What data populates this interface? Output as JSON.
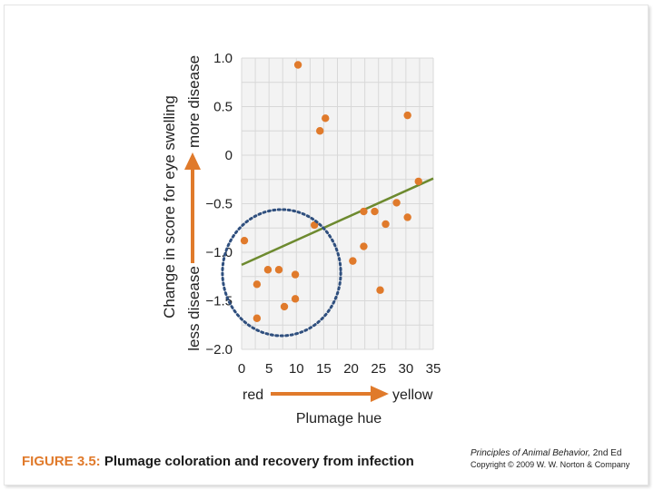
{
  "figure": {
    "label": "FIGURE 3.5:",
    "title": "Plumage coloration and recovery from infection",
    "book_title": "Principles of Animal Behavior,",
    "edition": "2nd Ed",
    "copyright": "Copyright © 2009 W. W. Norton & Company"
  },
  "chart_data": {
    "type": "scatter",
    "xlabel": "Plumage hue",
    "ylabel": "Change in score for eye swelling",
    "x_direction_labels": {
      "left": "red",
      "right": "yellow"
    },
    "y_direction_labels": {
      "bottom": "less disease",
      "top": "more disease"
    },
    "xlim": [
      0,
      35
    ],
    "ylim": [
      -2.0,
      1.0
    ],
    "x_ticks": [
      0,
      5,
      10,
      15,
      20,
      25,
      30,
      35
    ],
    "y_ticks": [
      -2.0,
      -1.5,
      -1.0,
      -0.5,
      0,
      0.5,
      1.0
    ],
    "y_tick_labels": [
      "−2.0",
      "−1.5",
      "−1.0",
      "−0.5",
      "0",
      "0.5",
      "1.0"
    ],
    "grid": true,
    "points": [
      {
        "x": 0.5,
        "y": -0.88
      },
      {
        "x": 2.8,
        "y": -1.33
      },
      {
        "x": 2.8,
        "y": -1.68
      },
      {
        "x": 4.8,
        "y": -1.18
      },
      {
        "x": 6.8,
        "y": -1.18
      },
      {
        "x": 7.8,
        "y": -1.56
      },
      {
        "x": 9.8,
        "y": -1.23
      },
      {
        "x": 9.8,
        "y": -1.48
      },
      {
        "x": 10.3,
        "y": 0.93
      },
      {
        "x": 13.3,
        "y": -0.72
      },
      {
        "x": 14.3,
        "y": 0.25
      },
      {
        "x": 15.3,
        "y": 0.38
      },
      {
        "x": 20.3,
        "y": -1.09
      },
      {
        "x": 22.3,
        "y": -0.58
      },
      {
        "x": 22.3,
        "y": -0.94
      },
      {
        "x": 24.3,
        "y": -0.58
      },
      {
        "x": 25.3,
        "y": -1.39
      },
      {
        "x": 26.3,
        "y": -0.71
      },
      {
        "x": 28.3,
        "y": -0.49
      },
      {
        "x": 30.3,
        "y": 0.41
      },
      {
        "x": 30.3,
        "y": -0.64
      },
      {
        "x": 32.3,
        "y": -0.27
      }
    ],
    "trendline": {
      "x": [
        0,
        35
      ],
      "y": [
        -1.13,
        -0.24
      ]
    },
    "highlight_ellipse": {
      "cx": 7.3,
      "cy": -1.21,
      "rx": 10.8,
      "ry": 0.65
    },
    "colors": {
      "points": "#e07a2b",
      "trendline": "#6d8a2f",
      "arrows": "#e07a2b",
      "ellipse": "#2f4f7e",
      "grid": "#d8d8d8",
      "plot_bg": "#f3f3f3",
      "text": "#222222"
    }
  }
}
